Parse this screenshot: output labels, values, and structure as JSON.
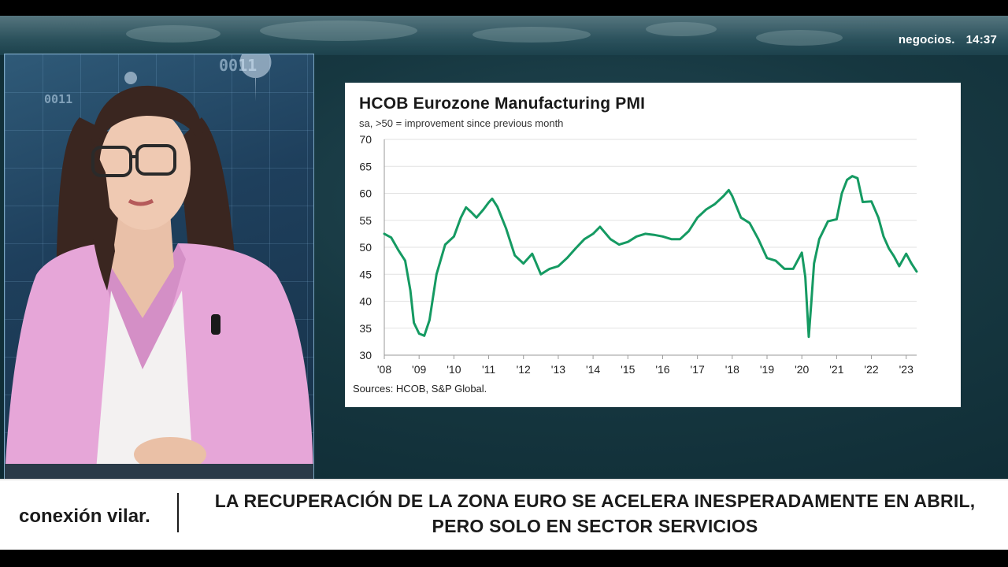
{
  "broadcast": {
    "brand": "negocios.",
    "time": "14:37"
  },
  "presenter_panel": {
    "overlay_codes": [
      "0011",
      "0011"
    ]
  },
  "chart_data": {
    "type": "line",
    "title": "HCOB Eurozone Manufacturing PMI",
    "subtitle": "sa, >50 = improvement since previous month",
    "source": "Sources: HCOB, S&P Global.",
    "ylim": [
      30,
      70
    ],
    "yticks": [
      70,
      65,
      60,
      55,
      50,
      45,
      40,
      35,
      30
    ],
    "xlim": [
      2008.0,
      2023.3
    ],
    "xticks": [
      {
        "label": "'08",
        "value": 2008
      },
      {
        "label": "'09",
        "value": 2009
      },
      {
        "label": "'10",
        "value": 2010
      },
      {
        "label": "'11",
        "value": 2011
      },
      {
        "label": "'12",
        "value": 2012
      },
      {
        "label": "'13",
        "value": 2013
      },
      {
        "label": "'14",
        "value": 2014
      },
      {
        "label": "'15",
        "value": 2015
      },
      {
        "label": "'16",
        "value": 2016
      },
      {
        "label": "'17",
        "value": 2017
      },
      {
        "label": "'18",
        "value": 2018
      },
      {
        "label": "'19",
        "value": 2019
      },
      {
        "label": "'20",
        "value": 2020
      },
      {
        "label": "'21",
        "value": 2021
      },
      {
        "label": "'22",
        "value": 2022
      },
      {
        "label": "'23",
        "value": 2023
      }
    ],
    "grid": true,
    "line_color": "#159a62",
    "x": [
      2008.0,
      2008.2,
      2008.4,
      2008.6,
      2008.75,
      2008.85,
      2009.0,
      2009.15,
      2009.3,
      2009.5,
      2009.75,
      2010.0,
      2010.2,
      2010.35,
      2010.5,
      2010.65,
      2010.85,
      2011.0,
      2011.1,
      2011.25,
      2011.5,
      2011.75,
      2012.0,
      2012.25,
      2012.5,
      2012.75,
      2013.0,
      2013.25,
      2013.5,
      2013.75,
      2014.0,
      2014.2,
      2014.5,
      2014.75,
      2015.0,
      2015.25,
      2015.5,
      2015.75,
      2016.0,
      2016.25,
      2016.5,
      2016.75,
      2017.0,
      2017.25,
      2017.5,
      2017.75,
      2017.9,
      2018.0,
      2018.25,
      2018.5,
      2018.75,
      2019.0,
      2019.25,
      2019.5,
      2019.75,
      2020.0,
      2020.1,
      2020.2,
      2020.27,
      2020.35,
      2020.5,
      2020.75,
      2021.0,
      2021.15,
      2021.3,
      2021.45,
      2021.6,
      2021.75,
      2022.0,
      2022.2,
      2022.35,
      2022.5,
      2022.65,
      2022.8,
      2023.0,
      2023.15,
      2023.3
    ],
    "values": [
      52.5,
      51.8,
      49.5,
      47.5,
      42.0,
      36.0,
      34.0,
      33.6,
      36.5,
      45.0,
      50.5,
      52.0,
      55.5,
      57.4,
      56.5,
      55.5,
      57.0,
      58.3,
      59.0,
      57.5,
      53.5,
      48.5,
      47.0,
      48.8,
      45.0,
      46.0,
      46.5,
      48.0,
      49.8,
      51.5,
      52.5,
      53.8,
      51.5,
      50.5,
      51.0,
      52.0,
      52.5,
      52.3,
      52.0,
      51.5,
      51.5,
      53.0,
      55.5,
      57.0,
      58.0,
      59.5,
      60.6,
      59.5,
      55.5,
      54.5,
      51.5,
      48.0,
      47.5,
      46.0,
      46.0,
      49.0,
      44.5,
      33.4,
      39.5,
      47.0,
      51.5,
      54.8,
      55.2,
      60.0,
      62.5,
      63.2,
      62.8,
      58.4,
      58.5,
      55.5,
      52.0,
      49.8,
      48.3,
      46.5,
      48.8,
      47.0,
      45.5
    ]
  },
  "lower_third": {
    "program": "conexión vilar.",
    "headline": "LA RECUPERACIÓN DE LA ZONA EURO SE ACELERA INESPERADAMENTE EN ABRIL, PERO SOLO EN SECTOR SERVICIOS"
  }
}
